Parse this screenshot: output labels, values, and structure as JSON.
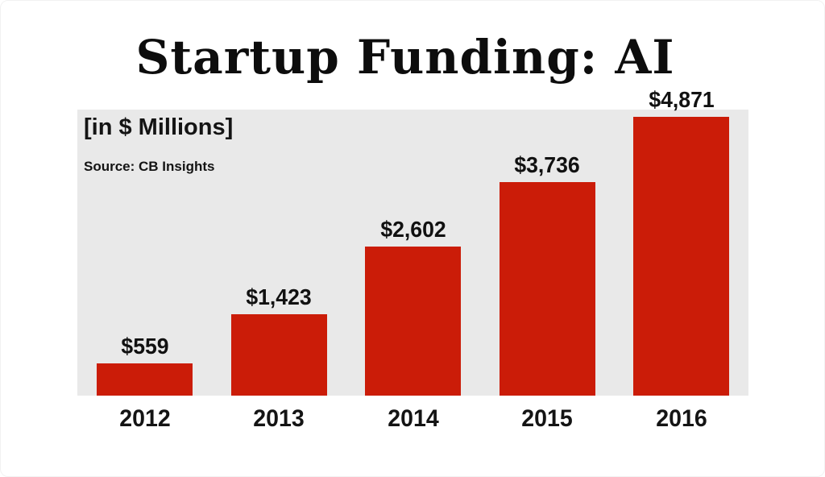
{
  "chart": {
    "title": "Startup Funding: AI",
    "unit_label": "[in $ Millions]",
    "source": "Source: CB Insights"
  },
  "chart_data": {
    "type": "bar",
    "title": "Startup Funding: AI",
    "categories": [
      "2012",
      "2013",
      "2014",
      "2015",
      "2016"
    ],
    "values": [
      559,
      1423,
      2602,
      3736,
      4871
    ],
    "value_labels": [
      "$559",
      "$1,423",
      "$2,602",
      "$3,736",
      "$4,871"
    ],
    "xlabel": "",
    "ylabel": "[in $ Millions]",
    "ylim": [
      0,
      5000
    ],
    "grid": false,
    "legend": false,
    "annotations": [
      "[in $ Millions]",
      "Source: CB Insights"
    ],
    "colors": {
      "bar": "#cb1c08",
      "plot_background": "#e9e9e9",
      "page_background": "#ffffff",
      "text": "#111111"
    }
  }
}
